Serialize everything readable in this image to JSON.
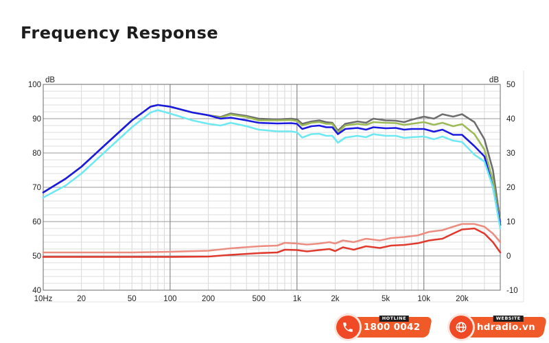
{
  "page": {
    "title": "Frequency Response"
  },
  "chart_data": {
    "type": "line",
    "title": "Frequency Response",
    "xscale": "log",
    "xlim": [
      10,
      40000
    ],
    "ylim_left": [
      40,
      100
    ],
    "ylim_right": [
      -10,
      50
    ],
    "left_unit": "dB",
    "right_unit": "dB",
    "x_ticks": [
      {
        "v": 10,
        "label": "10Hz"
      },
      {
        "v": 20,
        "label": "20"
      },
      {
        "v": 50,
        "label": "50"
      },
      {
        "v": 100,
        "label": "100"
      },
      {
        "v": 200,
        "label": "200"
      },
      {
        "v": 500,
        "label": "500"
      },
      {
        "v": 1000,
        "label": "1k"
      },
      {
        "v": 2000,
        "label": "2k"
      },
      {
        "v": 5000,
        "label": "5k"
      },
      {
        "v": 10000,
        "label": "10k"
      },
      {
        "v": 20000,
        "label": "20k"
      }
    ],
    "y_ticks_left": [
      "100",
      "90",
      "80",
      "70",
      "60",
      "50",
      "40"
    ],
    "y_ticks_right": [
      "50",
      "40",
      "30",
      "20",
      "10",
      "0",
      "-10"
    ],
    "series": [
      {
        "name": "gray",
        "color": "#6e6e6e",
        "axis": "left",
        "points": [
          [
            10,
            68.5
          ],
          [
            15,
            72.5
          ],
          [
            20,
            76
          ],
          [
            30,
            82
          ],
          [
            50,
            89.5
          ],
          [
            70,
            93.5
          ],
          [
            80,
            94
          ],
          [
            100,
            93.5
          ],
          [
            150,
            91.8
          ],
          [
            200,
            91
          ],
          [
            250,
            90.5
          ],
          [
            300,
            91.5
          ],
          [
            400,
            90.8
          ],
          [
            500,
            90
          ],
          [
            700,
            89.8
          ],
          [
            900,
            90
          ],
          [
            1000,
            89.8
          ],
          [
            1100,
            88.5
          ],
          [
            1300,
            89.2
          ],
          [
            1500,
            89.5
          ],
          [
            1700,
            89
          ],
          [
            1900,
            88.8
          ],
          [
            2100,
            86.5
          ],
          [
            2400,
            88.5
          ],
          [
            3000,
            89.2
          ],
          [
            3500,
            88.8
          ],
          [
            4000,
            90
          ],
          [
            5000,
            89.5
          ],
          [
            6000,
            89.4
          ],
          [
            7000,
            89
          ],
          [
            8000,
            89.7
          ],
          [
            10000,
            90.6
          ],
          [
            12000,
            90
          ],
          [
            14000,
            91.3
          ],
          [
            17000,
            90.6
          ],
          [
            20000,
            91.3
          ],
          [
            25000,
            89
          ],
          [
            30000,
            84
          ],
          [
            35000,
            75
          ],
          [
            40000,
            60
          ]
        ]
      },
      {
        "name": "green",
        "color": "#9dbb57",
        "axis": "left",
        "points": [
          [
            10,
            68.5
          ],
          [
            15,
            72.5
          ],
          [
            20,
            76
          ],
          [
            30,
            82
          ],
          [
            50,
            89.5
          ],
          [
            70,
            93.5
          ],
          [
            80,
            94
          ],
          [
            100,
            93.5
          ],
          [
            150,
            91.8
          ],
          [
            200,
            91
          ],
          [
            250,
            90.3
          ],
          [
            300,
            91.2
          ],
          [
            400,
            90.5
          ],
          [
            500,
            89.5
          ],
          [
            700,
            89.5
          ],
          [
            900,
            89.6
          ],
          [
            1000,
            89.3
          ],
          [
            1100,
            88
          ],
          [
            1300,
            88.8
          ],
          [
            1500,
            89
          ],
          [
            1700,
            88.5
          ],
          [
            1900,
            88.5
          ],
          [
            2100,
            86
          ],
          [
            2400,
            88
          ],
          [
            3000,
            88.5
          ],
          [
            3500,
            88.2
          ],
          [
            4000,
            89
          ],
          [
            5000,
            88.8
          ],
          [
            6000,
            88.7
          ],
          [
            7000,
            88.2
          ],
          [
            8000,
            88.5
          ],
          [
            10000,
            89
          ],
          [
            12000,
            88.2
          ],
          [
            14000,
            88.8
          ],
          [
            17000,
            87.8
          ],
          [
            20000,
            88.4
          ],
          [
            25000,
            85.5
          ],
          [
            30000,
            81
          ],
          [
            35000,
            72
          ],
          [
            40000,
            59
          ]
        ]
      },
      {
        "name": "blue",
        "color": "#1a1ae0",
        "axis": "left",
        "points": [
          [
            10,
            68.5
          ],
          [
            15,
            72.5
          ],
          [
            20,
            76
          ],
          [
            30,
            82
          ],
          [
            50,
            89.5
          ],
          [
            70,
            93.5
          ],
          [
            80,
            94
          ],
          [
            100,
            93.5
          ],
          [
            150,
            91.8
          ],
          [
            200,
            91
          ],
          [
            250,
            90
          ],
          [
            300,
            90.3
          ],
          [
            400,
            89.5
          ],
          [
            500,
            88.8
          ],
          [
            700,
            88.6
          ],
          [
            900,
            88.7
          ],
          [
            1000,
            88.5
          ],
          [
            1100,
            87
          ],
          [
            1300,
            87.8
          ],
          [
            1500,
            88
          ],
          [
            1700,
            87.5
          ],
          [
            1900,
            87.5
          ],
          [
            2100,
            85.5
          ],
          [
            2400,
            87
          ],
          [
            3000,
            87.3
          ],
          [
            3500,
            86.8
          ],
          [
            4000,
            87.5
          ],
          [
            5000,
            87.2
          ],
          [
            6000,
            87.3
          ],
          [
            7000,
            86.8
          ],
          [
            8000,
            87
          ],
          [
            10000,
            87
          ],
          [
            12000,
            86.2
          ],
          [
            14000,
            86.8
          ],
          [
            17000,
            85.3
          ],
          [
            20000,
            85.3
          ],
          [
            25000,
            82
          ],
          [
            30000,
            79
          ],
          [
            35000,
            70
          ],
          [
            40000,
            59
          ]
        ]
      },
      {
        "name": "cyan",
        "color": "#6fe9f1",
        "axis": "left",
        "points": [
          [
            10,
            67
          ],
          [
            15,
            70.5
          ],
          [
            20,
            74
          ],
          [
            30,
            80
          ],
          [
            50,
            87.5
          ],
          [
            70,
            91.8
          ],
          [
            80,
            92.5
          ],
          [
            100,
            91.5
          ],
          [
            150,
            89.5
          ],
          [
            200,
            88.5
          ],
          [
            250,
            88
          ],
          [
            300,
            88.8
          ],
          [
            400,
            87.8
          ],
          [
            500,
            86.8
          ],
          [
            700,
            86.3
          ],
          [
            900,
            86.3
          ],
          [
            1000,
            86
          ],
          [
            1100,
            84.5
          ],
          [
            1300,
            85.5
          ],
          [
            1500,
            85.6
          ],
          [
            1700,
            85
          ],
          [
            1900,
            85
          ],
          [
            2100,
            83
          ],
          [
            2400,
            84.5
          ],
          [
            3000,
            85
          ],
          [
            3500,
            84.6
          ],
          [
            4000,
            85.5
          ],
          [
            5000,
            85
          ],
          [
            6000,
            85
          ],
          [
            7000,
            84.4
          ],
          [
            8000,
            84.6
          ],
          [
            10000,
            84.8
          ],
          [
            12000,
            84
          ],
          [
            14000,
            84.8
          ],
          [
            17000,
            83.6
          ],
          [
            20000,
            83.2
          ],
          [
            25000,
            79.5
          ],
          [
            30000,
            77.5
          ],
          [
            35000,
            70
          ],
          [
            40000,
            58
          ]
        ]
      },
      {
        "name": "pink",
        "color": "#ec8d81",
        "axis": "right",
        "points": [
          [
            10,
            1
          ],
          [
            50,
            1
          ],
          [
            100,
            1.2
          ],
          [
            200,
            1.5
          ],
          [
            300,
            2.2
          ],
          [
            500,
            2.8
          ],
          [
            700,
            3
          ],
          [
            800,
            3.8
          ],
          [
            1000,
            3.6
          ],
          [
            1200,
            3.3
          ],
          [
            1500,
            3.6
          ],
          [
            1800,
            4
          ],
          [
            2000,
            3.6
          ],
          [
            2300,
            4.5
          ],
          [
            2800,
            4
          ],
          [
            3500,
            5
          ],
          [
            4500,
            4.5
          ],
          [
            5500,
            5.2
          ],
          [
            7000,
            5.5
          ],
          [
            9000,
            6
          ],
          [
            11000,
            7
          ],
          [
            14000,
            7.5
          ],
          [
            17000,
            8.5
          ],
          [
            20000,
            9.3
          ],
          [
            25000,
            9.3
          ],
          [
            30000,
            8.5
          ],
          [
            35000,
            6.5
          ],
          [
            40000,
            4
          ]
        ]
      },
      {
        "name": "red",
        "color": "#e03a2e",
        "axis": "right",
        "points": [
          [
            10,
            -0.3
          ],
          [
            50,
            -0.3
          ],
          [
            100,
            -0.3
          ],
          [
            200,
            -0.2
          ],
          [
            300,
            0.3
          ],
          [
            500,
            0.8
          ],
          [
            700,
            1
          ],
          [
            800,
            1.8
          ],
          [
            1000,
            1.7
          ],
          [
            1200,
            1.3
          ],
          [
            1500,
            1.7
          ],
          [
            1800,
            2
          ],
          [
            2000,
            1.4
          ],
          [
            2300,
            2.5
          ],
          [
            2800,
            1.8
          ],
          [
            3500,
            2.8
          ],
          [
            4500,
            2.3
          ],
          [
            5500,
            3
          ],
          [
            7000,
            3.2
          ],
          [
            9000,
            3.7
          ],
          [
            11000,
            4.5
          ],
          [
            14000,
            5
          ],
          [
            17000,
            6.5
          ],
          [
            20000,
            7.7
          ],
          [
            25000,
            8
          ],
          [
            30000,
            6.5
          ],
          [
            35000,
            4
          ],
          [
            40000,
            1
          ]
        ]
      }
    ]
  },
  "footer": {
    "hotline": {
      "label": "HOTLINE",
      "value": "1800 0042",
      "icon": "phone-icon"
    },
    "website": {
      "label": "WEBSITE",
      "value": "hdradio.vn",
      "icon": "globe-icon"
    }
  }
}
